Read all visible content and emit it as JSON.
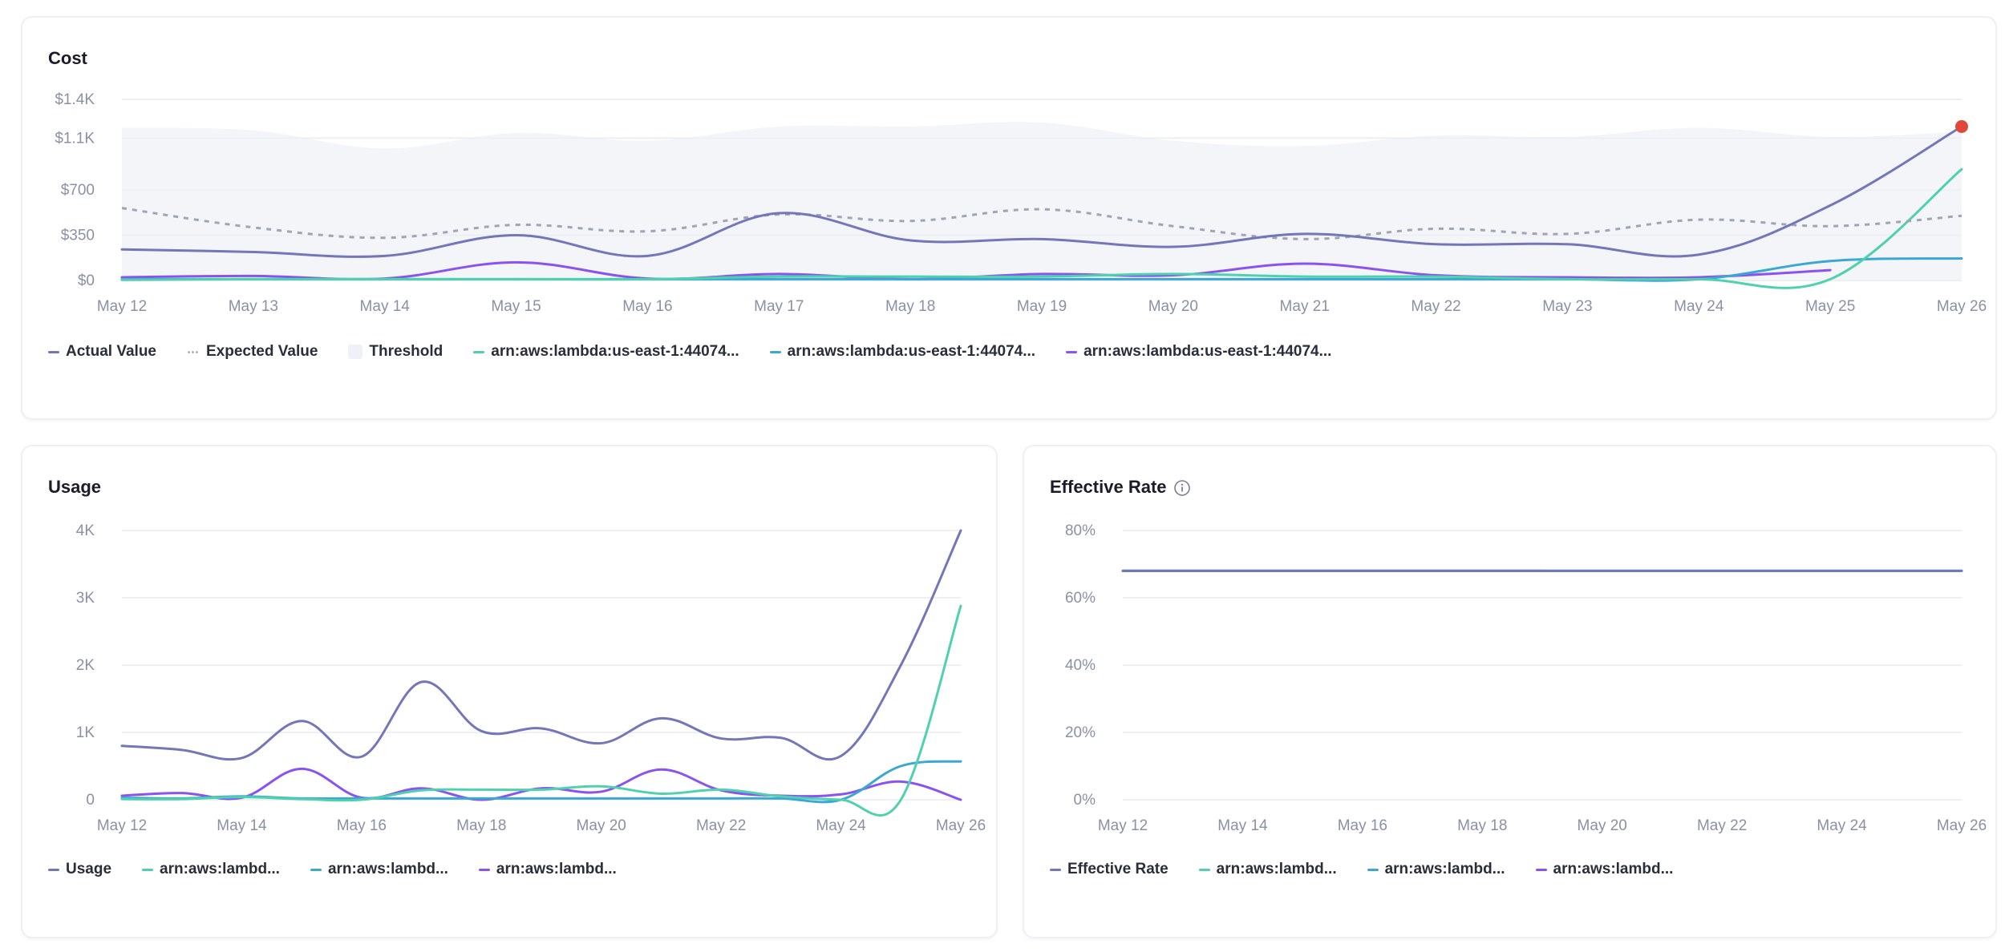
{
  "colors": {
    "actual": "#7376b8",
    "expected": "#a0a4b4",
    "threshold": "#f3f5f9",
    "series_teal": "#4fd1ae",
    "series_blue": "#3ba7d4",
    "series_purple": "#8a52f0",
    "alert_point": "#e0493a",
    "grid": "#eef0f4"
  },
  "chart_data": [
    {
      "id": "cost",
      "type": "line",
      "title": "Cost",
      "x": [
        "May 12",
        "May 13",
        "May 14",
        "May 15",
        "May 16",
        "May 17",
        "May 18",
        "May 19",
        "May 20",
        "May 21",
        "May 22",
        "May 23",
        "May 24",
        "May 25",
        "May 26"
      ],
      "xticks": [
        "May 12",
        "May 13",
        "May 14",
        "May 15",
        "May 16",
        "May 17",
        "May 18",
        "May 19",
        "May 20",
        "May 21",
        "May 22",
        "May 23",
        "May 24",
        "May 25",
        "May 26"
      ],
      "ylim": [
        0,
        1400
      ],
      "yticks": [
        0,
        350,
        700,
        1100,
        1400
      ],
      "ytick_labels": [
        "$0",
        "$350",
        "$700",
        "$1.1K",
        "$1.4K"
      ],
      "grid": true,
      "legend_position": "bottom-left",
      "threshold": {
        "name": "Threshold",
        "upper": [
          1180,
          1160,
          1020,
          1140,
          1080,
          1190,
          1190,
          1220,
          1080,
          1040,
          1120,
          1110,
          1180,
          1110,
          1150
        ]
      },
      "series": [
        {
          "name": "Actual Value",
          "color_key": "actual",
          "style": "solid",
          "values": [
            240,
            220,
            190,
            350,
            190,
            520,
            310,
            320,
            260,
            360,
            280,
            280,
            200,
            580,
            1190
          ]
        },
        {
          "name": "Expected Value",
          "color_key": "expected",
          "style": "dotted",
          "values": [
            560,
            410,
            330,
            430,
            380,
            510,
            460,
            550,
            420,
            320,
            400,
            360,
            470,
            420,
            500
          ]
        },
        {
          "name": "arn:aws:lambda:us-east-1:44074...",
          "color_key": "series_teal",
          "style": "solid",
          "values": [
            5,
            10,
            10,
            10,
            10,
            30,
            30,
            30,
            50,
            30,
            30,
            10,
            10,
            10,
            860
          ]
        },
        {
          "name": "arn:aws:lambda:us-east-1:44074...",
          "color_key": "series_blue",
          "style": "solid",
          "values": [
            10,
            10,
            10,
            10,
            10,
            10,
            10,
            10,
            10,
            10,
            10,
            10,
            10,
            150,
            170
          ]
        },
        {
          "name": "arn:aws:lambda:us-east-1:44074...",
          "color_key": "series_purple",
          "style": "solid",
          "values": [
            25,
            35,
            15,
            140,
            15,
            50,
            10,
            50,
            40,
            130,
            40,
            25,
            25,
            80,
            null
          ]
        }
      ],
      "alert_point": {
        "x": "May 26",
        "value": 1190
      }
    },
    {
      "id": "usage",
      "type": "line",
      "title": "Usage",
      "x": [
        "May 12",
        "May 13",
        "May 14",
        "May 15",
        "May 16",
        "May 17",
        "May 18",
        "May 19",
        "May 20",
        "May 21",
        "May 22",
        "May 23",
        "May 24",
        "May 25",
        "May 26"
      ],
      "xticks": [
        "May 12",
        "May 14",
        "May 16",
        "May 18",
        "May 20",
        "May 22",
        "May 24",
        "May 26"
      ],
      "ylim": [
        0,
        4000
      ],
      "yticks": [
        0,
        1000,
        2000,
        3000,
        4000
      ],
      "ytick_labels": [
        "0",
        "1K",
        "2K",
        "3K",
        "4K"
      ],
      "grid": true,
      "legend_position": "bottom-left",
      "series": [
        {
          "name": "Usage",
          "color_key": "actual",
          "values": [
            800,
            740,
            620,
            1170,
            640,
            1750,
            1020,
            1060,
            840,
            1210,
            910,
            920,
            650,
            2000,
            4000
          ]
        },
        {
          "name": "arn:aws:lambd...",
          "color_key": "series_teal",
          "values": [
            10,
            10,
            40,
            10,
            0,
            140,
            150,
            150,
            200,
            90,
            150,
            50,
            0,
            0,
            2880
          ]
        },
        {
          "name": "arn:aws:lambd...",
          "color_key": "series_blue",
          "values": [
            30,
            20,
            50,
            20,
            20,
            20,
            20,
            20,
            20,
            20,
            20,
            20,
            0,
            500,
            570
          ]
        },
        {
          "name": "arn:aws:lambd...",
          "color_key": "series_purple",
          "values": [
            60,
            100,
            30,
            460,
            30,
            170,
            0,
            170,
            120,
            450,
            140,
            60,
            80,
            270,
            0
          ]
        }
      ]
    },
    {
      "id": "effective_rate",
      "type": "line",
      "title": "Effective Rate",
      "x": [
        "May 12",
        "May 13",
        "May 14",
        "May 15",
        "May 16",
        "May 17",
        "May 18",
        "May 19",
        "May 20",
        "May 21",
        "May 22",
        "May 23",
        "May 24",
        "May 25",
        "May 26"
      ],
      "xticks": [
        "May 12",
        "May 14",
        "May 16",
        "May 18",
        "May 20",
        "May 22",
        "May 24",
        "May 26"
      ],
      "ylim": [
        0,
        80
      ],
      "yticks": [
        0,
        20,
        40,
        60,
        80
      ],
      "ytick_labels": [
        "0%",
        "20%",
        "40%",
        "60%",
        "80%"
      ],
      "grid": true,
      "legend_position": "bottom-left",
      "series": [
        {
          "name": "Effective Rate",
          "color_key": "actual",
          "values": [
            68,
            68,
            68,
            68,
            68,
            68,
            68,
            68,
            68,
            68,
            68,
            68,
            68,
            68,
            68
          ]
        },
        {
          "name": "arn:aws:lambd...",
          "color_key": "series_teal",
          "values": [
            68,
            68,
            68,
            68,
            68,
            68,
            68,
            68,
            68,
            68,
            68,
            68,
            68,
            68,
            68
          ]
        },
        {
          "name": "arn:aws:lambd...",
          "color_key": "series_blue",
          "values": [
            68,
            68,
            68,
            68,
            68,
            68,
            68,
            68,
            68,
            68,
            68,
            68,
            68,
            68,
            68
          ]
        },
        {
          "name": "arn:aws:lambd...",
          "color_key": "series_purple",
          "values": [
            68,
            68,
            68,
            68,
            68,
            68,
            68,
            68,
            null,
            null,
            null,
            null,
            null,
            68,
            null
          ]
        }
      ]
    }
  ],
  "cards": {
    "cost": {
      "title": "Cost"
    },
    "usage": {
      "title": "Usage"
    },
    "rate": {
      "title": "Effective Rate",
      "info_icon": "info-icon"
    }
  },
  "legends": {
    "cost": [
      {
        "label": "Actual Value",
        "swatch": "line",
        "color_key": "actual"
      },
      {
        "label": "Expected Value",
        "swatch": "dots",
        "color_key": "expected"
      },
      {
        "label": "Threshold",
        "swatch": "box",
        "color_key": "threshold"
      },
      {
        "label": "arn:aws:lambda:us-east-1:44074...",
        "swatch": "line",
        "color_key": "series_teal"
      },
      {
        "label": "arn:aws:lambda:us-east-1:44074...",
        "swatch": "line",
        "color_key": "series_blue"
      },
      {
        "label": "arn:aws:lambda:us-east-1:44074...",
        "swatch": "line",
        "color_key": "series_purple"
      }
    ],
    "usage": [
      {
        "label": "Usage",
        "swatch": "line",
        "color_key": "actual"
      },
      {
        "label": "arn:aws:lambd...",
        "swatch": "line",
        "color_key": "series_teal"
      },
      {
        "label": "arn:aws:lambd...",
        "swatch": "line",
        "color_key": "series_blue"
      },
      {
        "label": "arn:aws:lambd...",
        "swatch": "line",
        "color_key": "series_purple"
      }
    ],
    "rate": [
      {
        "label": "Effective Rate",
        "swatch": "line",
        "color_key": "actual"
      },
      {
        "label": "arn:aws:lambd...",
        "swatch": "line",
        "color_key": "series_teal"
      },
      {
        "label": "arn:aws:lambd...",
        "swatch": "line",
        "color_key": "series_blue"
      },
      {
        "label": "arn:aws:lambd...",
        "swatch": "line",
        "color_key": "series_purple"
      }
    ]
  }
}
